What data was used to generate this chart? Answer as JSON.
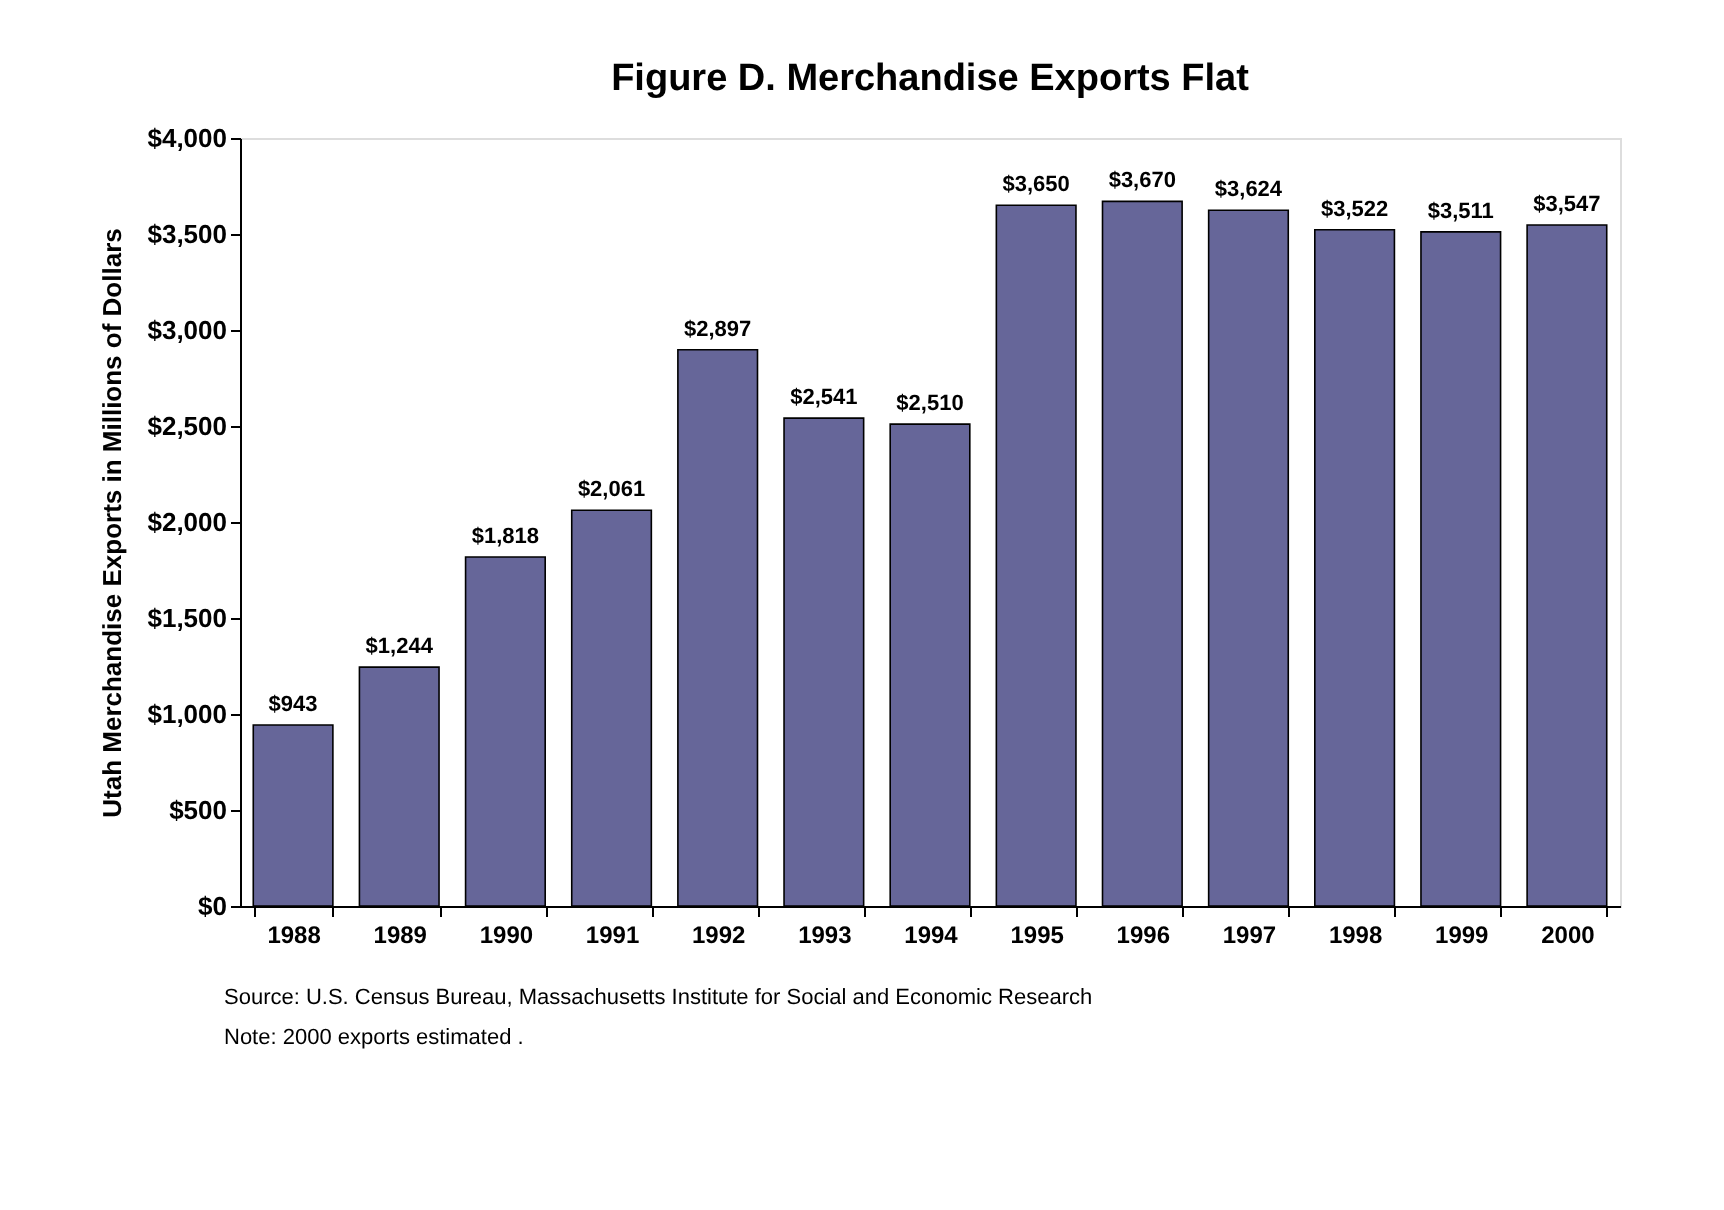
{
  "chart_data": {
    "type": "bar",
    "title": "Figure D.  Merchandise Exports Flat",
    "ylabel": "Utah Merchandise Exports in Millions of Dollars",
    "categories": [
      "1988",
      "1989",
      "1990",
      "1991",
      "1992",
      "1993",
      "1994",
      "1995",
      "1996",
      "1997",
      "1998",
      "1999",
      "2000"
    ],
    "values": [
      943,
      1244,
      1818,
      2061,
      2897,
      2541,
      2510,
      3650,
      3670,
      3624,
      3522,
      3511,
      3547
    ],
    "value_labels": [
      "$943",
      "$1,244",
      "$1,818",
      "$2,061",
      "$2,897",
      "$2,541",
      "$2,510",
      "$3,650",
      "$3,670",
      "$3,624",
      "$3,522",
      "$3,511",
      "$3,547"
    ],
    "color": "#666699",
    "ylim": [
      0,
      4000
    ],
    "yticks": [
      {
        "value": 0,
        "label": "$0"
      },
      {
        "value": 500,
        "label": "$500"
      },
      {
        "value": 1000,
        "label": "$1,000"
      },
      {
        "value": 1500,
        "label": "$1,500"
      },
      {
        "value": 2000,
        "label": "$2,000"
      },
      {
        "value": 2500,
        "label": "$2,500"
      },
      {
        "value": 3000,
        "label": "$3,000"
      },
      {
        "value": 3500,
        "label": "$3,500"
      },
      {
        "value": 4000,
        "label": "$4,000"
      }
    ],
    "grid": false,
    "annotations": [
      "Source: U.S. Census Bureau, Massachusetts Institute for Social and Economic Research",
      "Note: 2000 exports estimated ."
    ]
  }
}
